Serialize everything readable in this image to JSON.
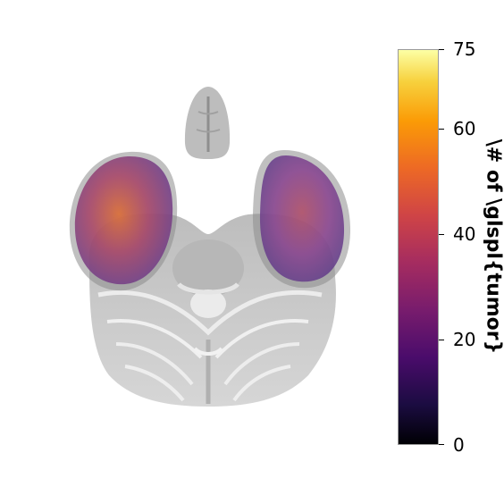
{
  "figure": {
    "description_icon": "brain-axial-slice-icon",
    "colormap": "inferno",
    "colors": {
      "brain_gray": "#c8c8c8",
      "overlay_purple": "#7a3f98",
      "overlay_orange": "#d9703c"
    }
  },
  "colorbar": {
    "min": 0,
    "max": 75,
    "ticks": [
      "0",
      "20",
      "40",
      "60",
      "75"
    ],
    "tick_values": [
      0,
      20,
      40,
      60,
      75
    ],
    "label": "\\# of \\glspl{tumor}"
  }
}
